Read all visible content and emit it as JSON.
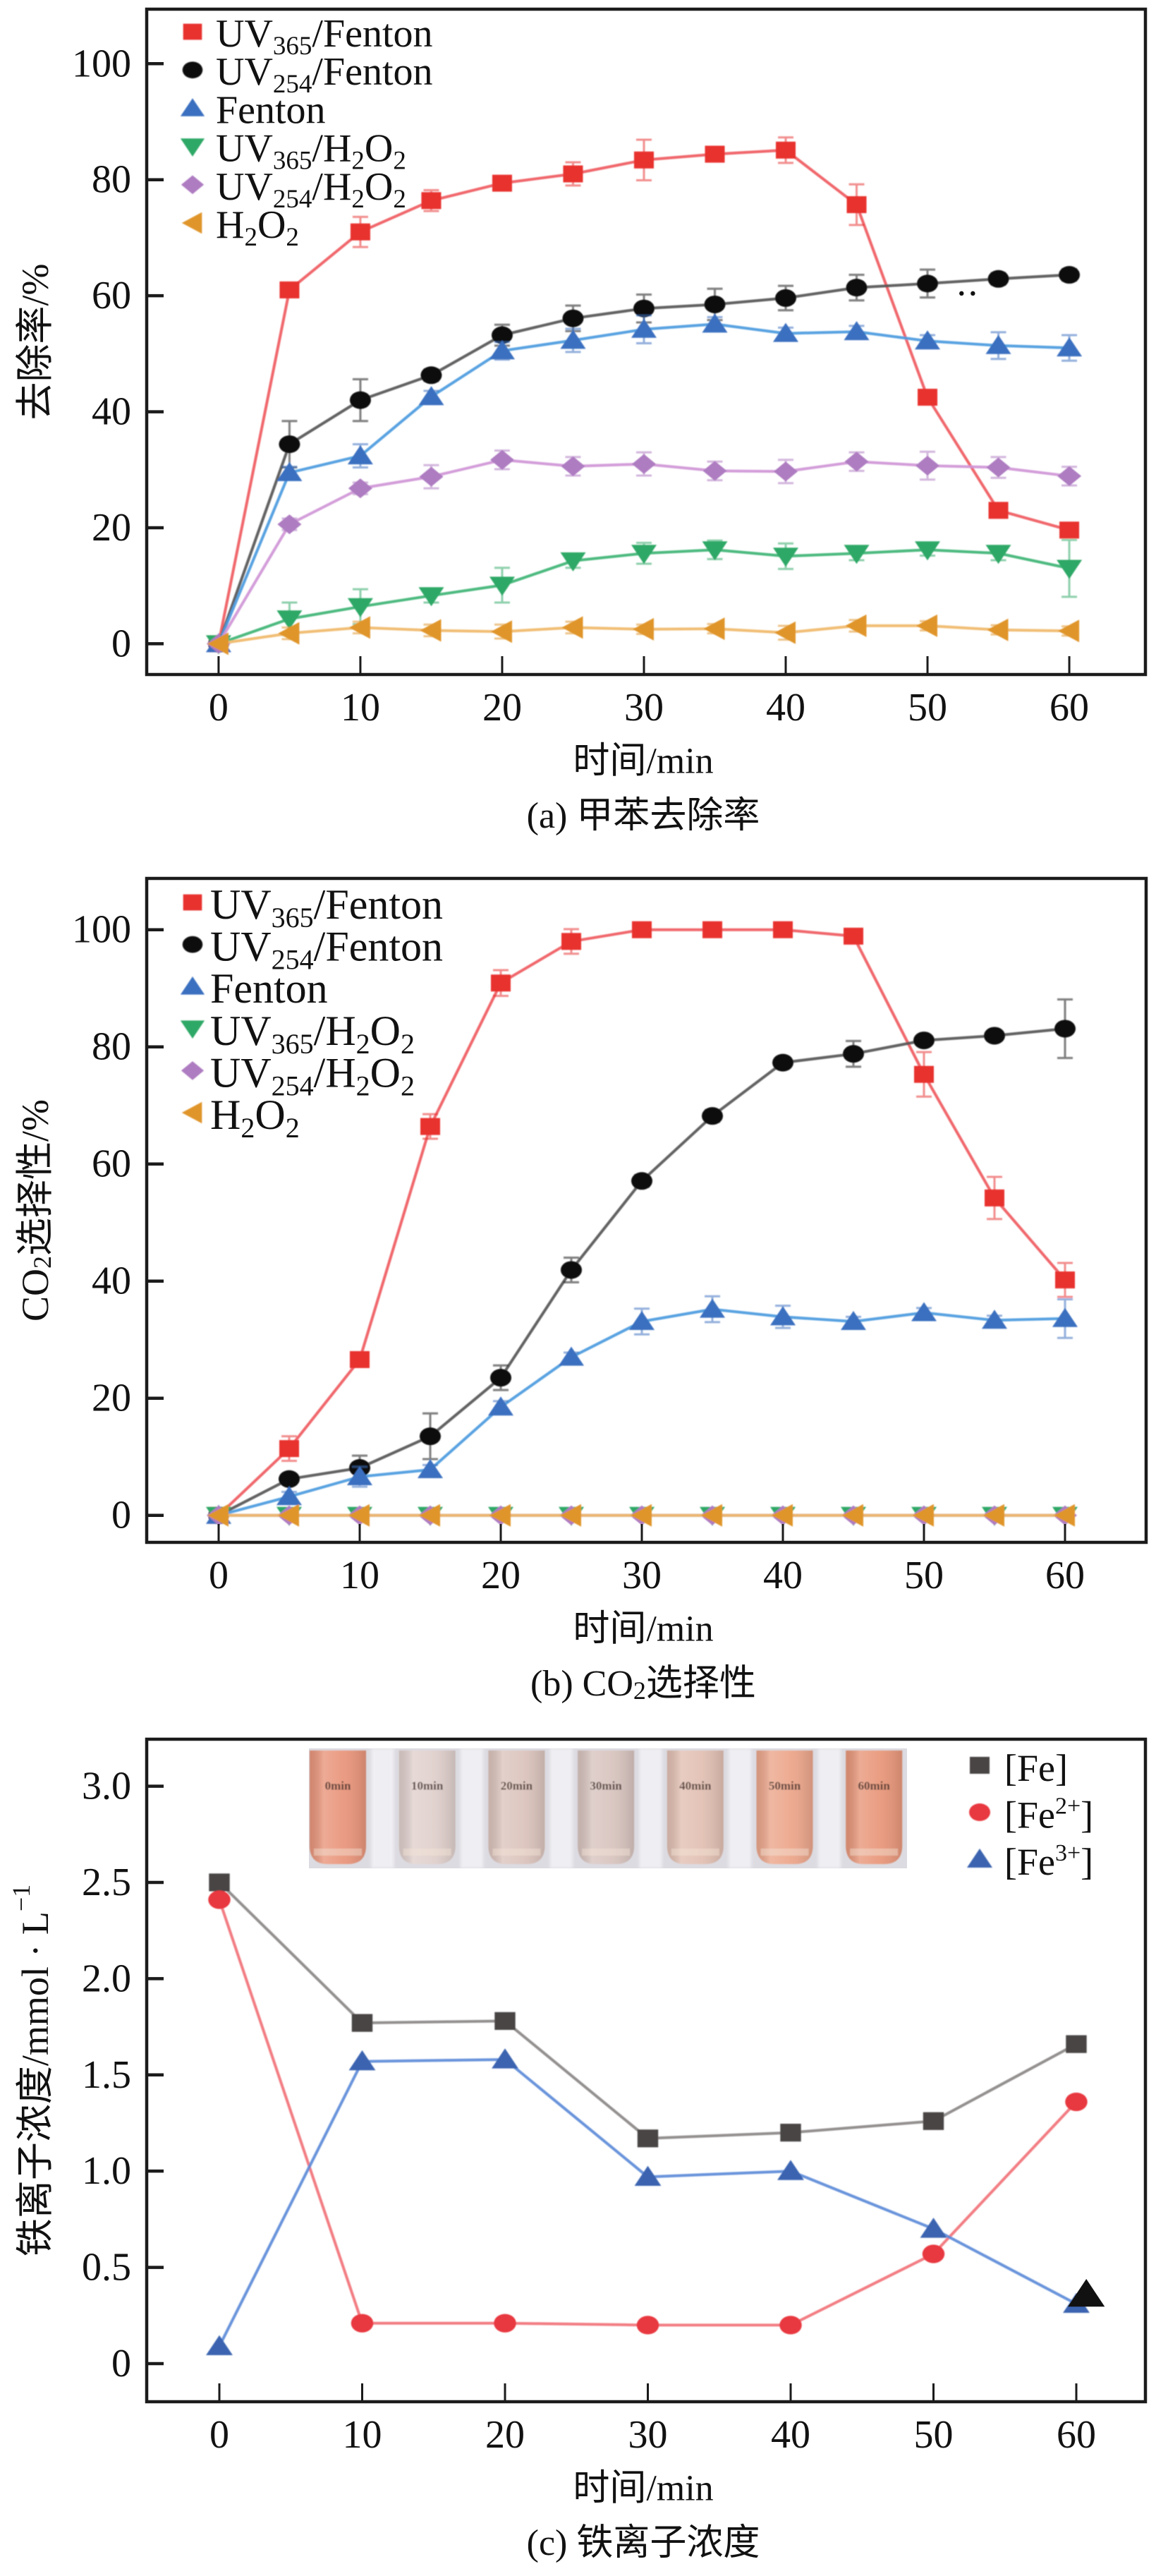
{
  "chart_data": [
    {
      "id": "a",
      "type": "line",
      "title": "",
      "caption": "(a) 甲苯去除率",
      "caption_parts": [
        {
          "text": "(a) 甲苯去除率"
        }
      ],
      "xlabel": "时间/min",
      "ylabel": "去除率/%",
      "ylabel_parts": [
        {
          "text": "去除率/%"
        }
      ],
      "x": [
        0,
        5,
        10,
        15,
        20,
        25,
        30,
        35,
        40,
        45,
        50,
        55,
        60
      ],
      "xticks": [
        0,
        10,
        20,
        30,
        40,
        50,
        60
      ],
      "xtick_labels": [
        "0",
        "10",
        "20",
        "30",
        "40",
        "50",
        "60"
      ],
      "yticks": [
        0,
        20,
        40,
        60,
        80,
        100
      ],
      "ytick_labels": [
        "0",
        "20",
        "40",
        "60",
        "80",
        "100"
      ],
      "xlim": [
        -5.07,
        65.37
      ],
      "ylim": [
        -5.3,
        109.4
      ],
      "grid": false,
      "error_bars": true,
      "legend": {
        "position": "top-left",
        "frame": false
      },
      "series": [
        {
          "name": "UV365/Fenton",
          "label_parts": [
            {
              "text": "UV"
            },
            {
              "text": "365",
              "style": "sub"
            },
            {
              "text": "/Fenton"
            }
          ],
          "marker": "square",
          "marker_color": "#e8302f",
          "line_color": "#ef5a5e",
          "values": [
            0,
            61.0,
            71.0,
            76.4,
            79.4,
            81.0,
            83.4,
            84.4,
            85.1,
            75.7,
            42.5,
            23.0,
            19.6
          ],
          "errors": [
            0,
            1.0,
            2.6,
            1.8,
            0.8,
            2.0,
            3.5,
            1.2,
            2.2,
            3.5,
            1.0,
            1.0,
            1.0
          ]
        },
        {
          "name": "UV254/Fenton",
          "label_parts": [
            {
              "text": "UV"
            },
            {
              "text": "254",
              "style": "sub"
            },
            {
              "text": "/Fenton"
            }
          ],
          "marker": "circle",
          "marker_color": "#111111",
          "line_color": "#555555",
          "values": [
            0,
            34.4,
            42.0,
            46.3,
            53.2,
            56.1,
            57.8,
            58.5,
            59.6,
            61.4,
            62.1,
            62.9,
            63.6
          ],
          "errors": [
            0,
            4.0,
            3.6,
            1.0,
            1.8,
            2.2,
            2.4,
            2.7,
            2.1,
            2.2,
            2.4,
            1.0,
            1.0
          ]
        },
        {
          "name": "Fenton",
          "label_parts": [
            {
              "text": "Fenton"
            }
          ],
          "marker": "triangle-up",
          "marker_color": "#3a6fc0",
          "line_color": "#4a9ade",
          "values": [
            0,
            29.5,
            32.4,
            42.6,
            50.5,
            52.3,
            54.2,
            55.1,
            53.5,
            53.8,
            52.2,
            51.4,
            51.0
          ],
          "errors": [
            0,
            1.0,
            2.0,
            1.0,
            1.5,
            2.0,
            2.4,
            1.2,
            1.0,
            1.0,
            1.0,
            2.3,
            2.2
          ]
        },
        {
          "name": "UV365/H2O2",
          "label_parts": [
            {
              "text": "UV"
            },
            {
              "text": "365",
              "style": "sub"
            },
            {
              "text": "/H"
            },
            {
              "text": "2",
              "style": "sub"
            },
            {
              "text": "O"
            },
            {
              "text": "2",
              "style": "sub"
            }
          ],
          "marker": "triangle-down",
          "marker_color": "#2ea866",
          "line_color": "#3cb474",
          "values": [
            0,
            4.3,
            6.4,
            8.3,
            10.1,
            14.3,
            15.6,
            16.2,
            15.1,
            15.6,
            16.2,
            15.6,
            13.0
          ],
          "errors": [
            0,
            2.8,
            3.0,
            1.2,
            3.0,
            1.2,
            1.8,
            1.6,
            2.2,
            1.2,
            1.0,
            1.2,
            4.9
          ]
        },
        {
          "name": "UV254/H2O2",
          "label_parts": [
            {
              "text": "UV"
            },
            {
              "text": "254",
              "style": "sub"
            },
            {
              "text": "/H"
            },
            {
              "text": "2",
              "style": "sub"
            },
            {
              "text": "O"
            },
            {
              "text": "2",
              "style": "sub"
            }
          ],
          "marker": "diamond",
          "marker_color": "#ae7bc1",
          "line_color": "#cf95d6",
          "values": [
            0,
            20.6,
            26.8,
            28.8,
            31.7,
            30.6,
            31.0,
            29.8,
            29.7,
            31.4,
            30.7,
            30.4,
            28.9
          ],
          "errors": [
            0,
            1.0,
            1.0,
            2.0,
            1.6,
            1.6,
            2.0,
            1.6,
            2.0,
            1.6,
            2.4,
            1.8,
            1.6
          ]
        },
        {
          "name": "H2O2",
          "label_parts": [
            {
              "text": "H"
            },
            {
              "text": "2",
              "style": "sub"
            },
            {
              "text": "O"
            },
            {
              "text": "2",
              "style": "sub"
            }
          ],
          "marker": "triangle-left",
          "marker_color": "#e0952c",
          "line_color": "#f0b868",
          "values": [
            0,
            1.8,
            2.8,
            2.3,
            2.1,
            2.8,
            2.5,
            2.6,
            1.9,
            3.1,
            3.1,
            2.4,
            2.2
          ],
          "errors": [
            0,
            1.0,
            1.0,
            1.0,
            1.2,
            1.0,
            0.8,
            0.8,
            1.2,
            1.0,
            0.8,
            0.8,
            0.8
          ]
        }
      ],
      "annotations": [
        {
          "type": "dot",
          "x": 52.4,
          "y": 60.4,
          "color": "#111111"
        },
        {
          "type": "dot",
          "x": 53.2,
          "y": 60.4,
          "color": "#111111"
        }
      ]
    },
    {
      "id": "b",
      "type": "line",
      "title": "",
      "caption": "(b) CO2选择性",
      "caption_parts": [
        {
          "text": "(b) CO"
        },
        {
          "text": "2",
          "style": "sub"
        },
        {
          "text": "选择性"
        }
      ],
      "xlabel": "时间/min",
      "ylabel": "CO2选择性/%",
      "ylabel_parts": [
        {
          "text": "CO"
        },
        {
          "text": "2",
          "style": "sub"
        },
        {
          "text": "选择性/%"
        }
      ],
      "x": [
        0,
        5,
        10,
        15,
        20,
        25,
        30,
        35,
        40,
        45,
        50,
        55,
        60
      ],
      "xticks": [
        0,
        10,
        20,
        30,
        40,
        50,
        60
      ],
      "xtick_labels": [
        "0",
        "10",
        "20",
        "30",
        "40",
        "50",
        "60"
      ],
      "yticks": [
        0,
        20,
        40,
        60,
        80,
        100
      ],
      "ytick_labels": [
        "0",
        "20",
        "40",
        "60",
        "80",
        "100"
      ],
      "xlim": [
        -5.1,
        65.75
      ],
      "ylim": [
        -4.61,
        108.76
      ],
      "grid": false,
      "error_bars": true,
      "legend": {
        "position": "top-left",
        "frame": false
      },
      "series": [
        {
          "name": "UV365/Fenton",
          "label_parts": [
            {
              "text": "UV"
            },
            {
              "text": "365",
              "style": "sub"
            },
            {
              "text": "/Fenton"
            }
          ],
          "marker": "square",
          "marker_color": "#e8302f",
          "line_color": "#ef5a5e",
          "values": [
            0,
            11.4,
            26.6,
            66.4,
            90.9,
            98.0,
            100,
            100,
            100,
            98.9,
            75.3,
            54.2,
            40.2
          ],
          "errors": [
            0,
            2.1,
            0.8,
            2.1,
            2.2,
            2.1,
            0.5,
            0.5,
            0.5,
            0.5,
            3.8,
            3.6,
            2.9
          ]
        },
        {
          "name": "UV254/Fenton",
          "label_parts": [
            {
              "text": "UV"
            },
            {
              "text": "254",
              "style": "sub"
            },
            {
              "text": "/Fenton"
            }
          ],
          "marker": "circle",
          "marker_color": "#111111",
          "line_color": "#555555",
          "values": [
            0,
            6.2,
            8.1,
            13.5,
            23.5,
            41.9,
            57.1,
            68.2,
            77.3,
            78.8,
            81.1,
            81.9,
            83.1
          ],
          "errors": [
            0,
            0.8,
            2.1,
            3.9,
            2.1,
            2.1,
            1.0,
            1.0,
            0.8,
            2.2,
            0.8,
            0.8,
            5.0
          ]
        },
        {
          "name": "Fenton",
          "label_parts": [
            {
              "text": "Fenton"
            }
          ],
          "marker": "triangle-up",
          "marker_color": "#3a6fc0",
          "line_color": "#4a9ade",
          "values": [
            0,
            3.2,
            6.6,
            7.8,
            18.5,
            27.0,
            33.1,
            35.2,
            33.9,
            33.1,
            34.6,
            33.3,
            33.6
          ],
          "errors": [
            0,
            0.8,
            1.7,
            0.8,
            1.0,
            0.8,
            2.2,
            2.2,
            1.9,
            0.8,
            0.8,
            0.8,
            3.3
          ]
        },
        {
          "name": "UV365/H2O2",
          "label_parts": [
            {
              "text": "UV"
            },
            {
              "text": "365",
              "style": "sub"
            },
            {
              "text": "/H"
            },
            {
              "text": "2",
              "style": "sub"
            },
            {
              "text": "O"
            },
            {
              "text": "2",
              "style": "sub"
            }
          ],
          "marker": "triangle-down",
          "marker_color": "#2ea866",
          "line_color": "#3cb474",
          "values": [
            0,
            0,
            0,
            0,
            0,
            0,
            0,
            0,
            0,
            0,
            0,
            0,
            0
          ],
          "errors": [
            0,
            0,
            0,
            0,
            0,
            0,
            0,
            0,
            0,
            0,
            0,
            0,
            0
          ]
        },
        {
          "name": "UV254/H2O2",
          "label_parts": [
            {
              "text": "UV"
            },
            {
              "text": "254",
              "style": "sub"
            },
            {
              "text": "/H"
            },
            {
              "text": "2",
              "style": "sub"
            },
            {
              "text": "O"
            },
            {
              "text": "2",
              "style": "sub"
            }
          ],
          "marker": "diamond",
          "marker_color": "#ae7bc1",
          "line_color": "#cf95d6",
          "values": [
            0,
            0,
            0,
            0,
            0,
            0,
            0,
            0,
            0,
            0,
            0,
            0,
            0
          ],
          "errors": [
            0,
            0,
            0,
            0,
            0,
            0,
            0,
            0,
            0,
            0,
            0,
            0,
            0
          ]
        },
        {
          "name": "H2O2",
          "label_parts": [
            {
              "text": "H"
            },
            {
              "text": "2",
              "style": "sub"
            },
            {
              "text": "O"
            },
            {
              "text": "2",
              "style": "sub"
            }
          ],
          "marker": "triangle-left",
          "marker_color": "#e0952c",
          "line_color": "#f0b868",
          "values": [
            0,
            0,
            0,
            0,
            0,
            0,
            0,
            0,
            0,
            0,
            0,
            0,
            0
          ],
          "errors": [
            0,
            0,
            0,
            0,
            0,
            0,
            0,
            0,
            0,
            0,
            0,
            0,
            0
          ]
        }
      ],
      "annotations": []
    },
    {
      "id": "c",
      "type": "line",
      "title": "",
      "caption": "(c) 铁离子浓度",
      "caption_parts": [
        {
          "text": "(c) 铁离子浓度"
        }
      ],
      "xlabel": "时间/min",
      "ylabel": "铁离子浓度/mmol · L−1",
      "ylabel_parts": [
        {
          "text": "铁离子浓度/mmol · L"
        },
        {
          "text": "−1",
          "style": "sup"
        }
      ],
      "x": [
        0,
        10,
        20,
        30,
        40,
        50,
        60
      ],
      "xticks": [
        0,
        10,
        20,
        30,
        40,
        50,
        60
      ],
      "xtick_labels": [
        "0",
        "10",
        "20",
        "30",
        "40",
        "50",
        "60"
      ],
      "yticks": [
        0,
        0.5,
        1.0,
        1.5,
        2.0,
        2.5,
        3.0
      ],
      "ytick_labels": [
        "0",
        "0.5",
        "1.0",
        "1.5",
        "2.0",
        "2.5",
        "3.0"
      ],
      "xlim": [
        -5.086,
        64.84
      ],
      "ylim": [
        -0.198,
        3.244
      ],
      "grid": false,
      "error_bars": false,
      "legend": {
        "position": "top-right",
        "frame": false
      },
      "series": [
        {
          "name": "[Fe]",
          "label_parts": [
            {
              "text": "[Fe]"
            }
          ],
          "marker": "square",
          "marker_color": "#4a4545",
          "line_color": "#8a8585",
          "values": [
            2.5,
            1.77,
            1.78,
            1.17,
            1.2,
            1.26,
            1.66
          ]
        },
        {
          "name": "[Fe2+]",
          "label_parts": [
            {
              "text": "[Fe"
            },
            {
              "text": "2+",
              "style": "sup"
            },
            {
              "text": "]"
            }
          ],
          "marker": "circle",
          "marker_color": "#e8393f",
          "line_color": "#f17277",
          "values": [
            2.41,
            0.21,
            0.21,
            0.2,
            0.2,
            0.57,
            1.36
          ]
        },
        {
          "name": "[Fe3+]",
          "label_parts": [
            {
              "text": "[Fe"
            },
            {
              "text": "3+",
              "style": "sup"
            },
            {
              "text": "]"
            }
          ],
          "marker": "triangle-up",
          "marker_color": "#3a63b0",
          "line_color": "#5b8ad8",
          "values": [
            0.09,
            1.57,
            1.58,
            0.97,
            1.0,
            0.7,
            0.31
          ]
        }
      ],
      "annotations": [
        {
          "type": "marker",
          "shape": "triangle-up",
          "x": 60.7,
          "y": 0.36,
          "color": "#111111"
        }
      ],
      "inset_photo": {
        "position": "top-center",
        "background_color": "#dcdbe1",
        "vials": [
          {
            "label": "0min",
            "color": "#e9957b"
          },
          {
            "label": "10min",
            "color": "#e0d0cc"
          },
          {
            "label": "20min",
            "color": "#dcc4bd"
          },
          {
            "label": "30min",
            "color": "#d8c4bf"
          },
          {
            "label": "40min",
            "color": "#e2c0b3"
          },
          {
            "label": "50min",
            "color": "#eca68b"
          },
          {
            "label": "60min",
            "color": "#e8977a"
          }
        ]
      }
    }
  ]
}
